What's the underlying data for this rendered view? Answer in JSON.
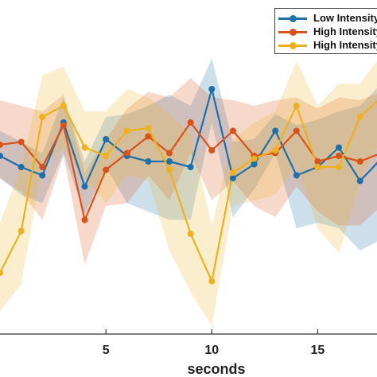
{
  "chart_data": {
    "type": "line",
    "xlabel": "seconds",
    "ylabel": "",
    "title": "",
    "xlim": [
      0,
      17.8
    ],
    "ylim": [
      -0.6,
      0.6
    ],
    "xticks": [
      5,
      10,
      15
    ],
    "x": [
      0,
      1,
      2,
      3,
      4,
      5,
      6,
      7,
      8,
      9,
      10,
      11,
      12,
      13,
      14,
      15,
      16,
      17,
      18
    ],
    "legend_position": "top-right",
    "series": [
      {
        "name": "Low Intensity",
        "color": "#1f6fa8",
        "values": [
          0.04,
          0.0,
          -0.03,
          0.16,
          -0.07,
          0.1,
          0.04,
          0.02,
          0.02,
          0.0,
          0.28,
          -0.04,
          0.01,
          0.13,
          -0.03,
          0.0,
          0.07,
          -0.05,
          0.03
        ],
        "upper": [
          0.13,
          0.09,
          0.05,
          0.25,
          0.02,
          0.18,
          0.19,
          0.22,
          0.26,
          0.22,
          0.39,
          0.09,
          0.1,
          0.19,
          0.15,
          0.17,
          0.2,
          0.22,
          0.3
        ],
        "lower": [
          -0.04,
          -0.1,
          -0.13,
          0.05,
          -0.17,
          0.0,
          -0.13,
          -0.16,
          -0.19,
          -0.19,
          0.16,
          -0.18,
          -0.08,
          0.05,
          -0.22,
          -0.2,
          -0.22,
          -0.3,
          -0.26
        ]
      },
      {
        "name": "High Intensity",
        "color": "#d95319",
        "values": [
          0.08,
          0.09,
          0.0,
          0.15,
          -0.19,
          -0.01,
          0.05,
          0.11,
          0.05,
          0.16,
          0.06,
          0.13,
          0.04,
          0.05,
          0.13,
          0.02,
          0.04,
          0.02,
          0.05
        ],
        "upper": [
          0.24,
          0.22,
          0.2,
          0.26,
          -0.02,
          0.1,
          0.21,
          0.27,
          0.25,
          0.32,
          0.25,
          0.24,
          0.22,
          0.24,
          0.25,
          0.21,
          0.25,
          0.24,
          0.27
        ],
        "lower": [
          -0.04,
          -0.09,
          -0.19,
          0.04,
          -0.35,
          -0.14,
          -0.13,
          -0.03,
          -0.12,
          0.05,
          -0.12,
          -0.05,
          -0.14,
          -0.18,
          -0.07,
          -0.16,
          -0.21,
          -0.21,
          -0.14
        ]
      },
      {
        "name": "High Intensity",
        "color": "#edb120",
        "values": [
          -0.38,
          -0.23,
          0.18,
          0.22,
          0.07,
          0.04,
          0.13,
          0.14,
          -0.01,
          -0.24,
          -0.41,
          -0.02,
          0.03,
          0.06,
          0.22,
          0.0,
          0.0,
          0.18,
          0.25
        ],
        "upper": [
          -0.2,
          0.0,
          0.33,
          0.36,
          0.2,
          0.2,
          0.28,
          0.25,
          0.19,
          0.12,
          -0.21,
          0.1,
          0.16,
          0.2,
          0.38,
          0.22,
          0.3,
          0.3,
          0.4
        ],
        "lower": [
          -0.52,
          -0.42,
          0.0,
          0.07,
          -0.04,
          -0.13,
          -0.03,
          -0.05,
          -0.3,
          -0.45,
          -0.57,
          -0.14,
          -0.12,
          -0.1,
          0.01,
          -0.22,
          -0.31,
          -0.05,
          0.1
        ]
      }
    ]
  },
  "legend": {
    "items": [
      {
        "label": "Low Intensity",
        "color": "#1f6fa8"
      },
      {
        "label": "High Intensity",
        "color": "#d95319"
      },
      {
        "label": "High Intensity",
        "color": "#edb120"
      }
    ]
  }
}
